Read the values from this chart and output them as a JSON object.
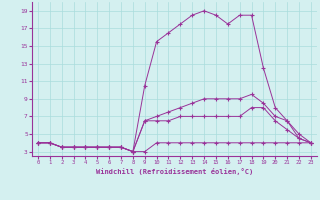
{
  "xlabel": "Windchill (Refroidissement éolien,°C)",
  "x": [
    0,
    1,
    2,
    3,
    4,
    5,
    6,
    7,
    8,
    9,
    10,
    11,
    12,
    13,
    14,
    15,
    16,
    17,
    18,
    19,
    20,
    21,
    22,
    23
  ],
  "line1": [
    4.0,
    4.0,
    3.5,
    3.5,
    3.5,
    3.5,
    3.5,
    3.5,
    3.0,
    3.0,
    4.0,
    4.0,
    4.0,
    4.0,
    4.0,
    4.0,
    4.0,
    4.0,
    4.0,
    4.0,
    4.0,
    4.0,
    4.0,
    4.0
  ],
  "line2": [
    4.0,
    4.0,
    3.5,
    3.5,
    3.5,
    3.5,
    3.5,
    3.5,
    3.0,
    6.5,
    6.5,
    6.5,
    7.0,
    7.0,
    7.0,
    7.0,
    7.0,
    7.0,
    8.0,
    8.0,
    6.5,
    5.5,
    4.5,
    4.0
  ],
  "line3": [
    4.0,
    4.0,
    3.5,
    3.5,
    3.5,
    3.5,
    3.5,
    3.5,
    3.0,
    6.5,
    7.0,
    7.5,
    8.0,
    8.5,
    9.0,
    9.0,
    9.0,
    9.0,
    9.5,
    8.5,
    7.0,
    6.5,
    5.0,
    4.0
  ],
  "line4": [
    4.0,
    4.0,
    3.5,
    3.5,
    3.5,
    3.5,
    3.5,
    3.5,
    3.0,
    10.5,
    15.5,
    16.5,
    17.5,
    18.5,
    19.0,
    18.5,
    17.5,
    18.5,
    18.5,
    12.5,
    8.0,
    6.5,
    4.5,
    4.0
  ],
  "bg_color": "#d4f0f0",
  "grid_color": "#aadddd",
  "line_color": "#993399",
  "ylim": [
    2.5,
    20
  ],
  "yticks": [
    3,
    5,
    7,
    9,
    11,
    13,
    15,
    17,
    19
  ],
  "xlim": [
    -0.5,
    23.5
  ]
}
